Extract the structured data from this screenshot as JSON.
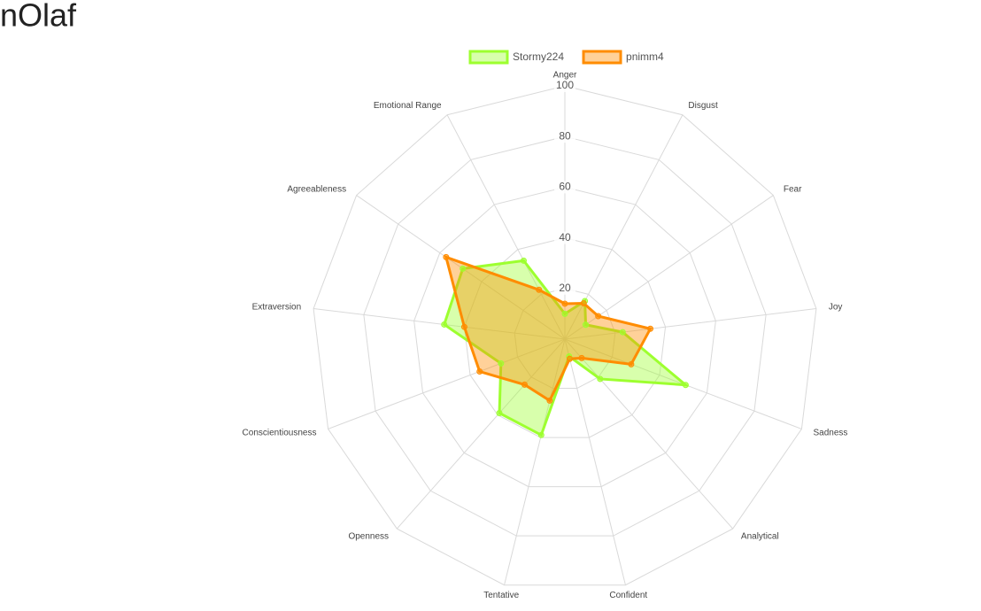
{
  "chart_data": {
    "type": "radar",
    "title": "nOlaf",
    "categories": [
      "Anger",
      "Disgust",
      "Fear",
      "Joy",
      "Sadness",
      "Analytical",
      "Confident",
      "Tentative",
      "Openness",
      "Conscientiousness",
      "Extraversion",
      "Agreeableness",
      "Emotional Range"
    ],
    "series": [
      {
        "name": "Stormy224",
        "color": "#9dff2f",
        "values": [
          10,
          17,
          10,
          23,
          51,
          21,
          7,
          39,
          39,
          27,
          48,
          49,
          35
        ]
      },
      {
        "name": "pnimm4",
        "color": "#ff8c00",
        "values": [
          14,
          16,
          16,
          34,
          28,
          10,
          8,
          25,
          24,
          36,
          40,
          57,
          22
        ]
      }
    ],
    "rlim": [
      0,
      100
    ],
    "rticks": [
      20,
      40,
      60,
      80,
      100
    ],
    "grid": true,
    "legend": "top"
  }
}
